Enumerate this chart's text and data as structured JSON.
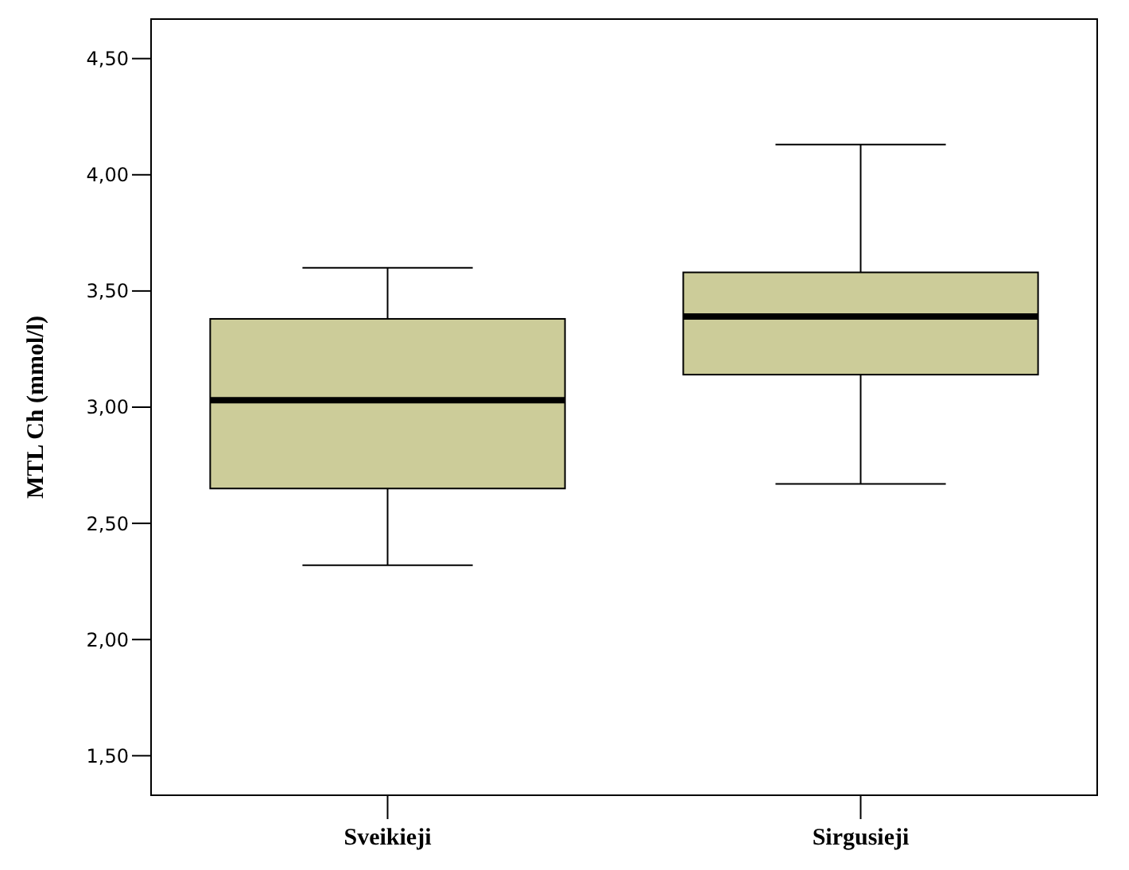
{
  "chart_data": {
    "type": "box",
    "ylabel": "MTL Ch (mmol/l)",
    "categories": [
      "Sveikieji",
      "Sirgusieji"
    ],
    "color": "#cccc99",
    "boxes": [
      {
        "low": 2.32,
        "q1": 2.65,
        "median": 3.03,
        "q3": 3.38,
        "high": 3.6
      },
      {
        "low": 2.67,
        "q1": 3.14,
        "median": 3.39,
        "q3": 3.58,
        "high": 4.13
      }
    ],
    "ylim": [
      1.33,
      4.67
    ],
    "yticks": [
      {
        "value": 1.5,
        "label": "1,50"
      },
      {
        "value": 2,
        "label": "2,00"
      },
      {
        "value": 2.5,
        "label": "2,50"
      },
      {
        "value": 3,
        "label": "3,00"
      },
      {
        "value": 3.5,
        "label": "3,50"
      },
      {
        "value": 4,
        "label": "4,00"
      },
      {
        "value": 4.5,
        "label": "4,50"
      }
    ],
    "grid": false
  }
}
